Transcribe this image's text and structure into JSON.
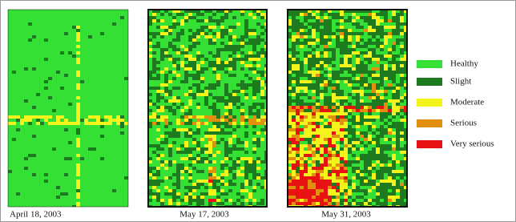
{
  "panels": [
    {
      "caption": "April 18, 2003"
    },
    {
      "caption": "May 17, 2003"
    },
    {
      "caption": "May 31, 2003"
    }
  ],
  "legend": {
    "items": [
      {
        "label": "Healthy",
        "color": "#33e033"
      },
      {
        "label": "Slight",
        "color": "#1e7a1e"
      },
      {
        "label": "Moderate",
        "color": "#f4f41c"
      },
      {
        "label": "Serious",
        "color": "#e0900e"
      },
      {
        "label": "Very serious",
        "color": "#e81212"
      }
    ]
  }
}
